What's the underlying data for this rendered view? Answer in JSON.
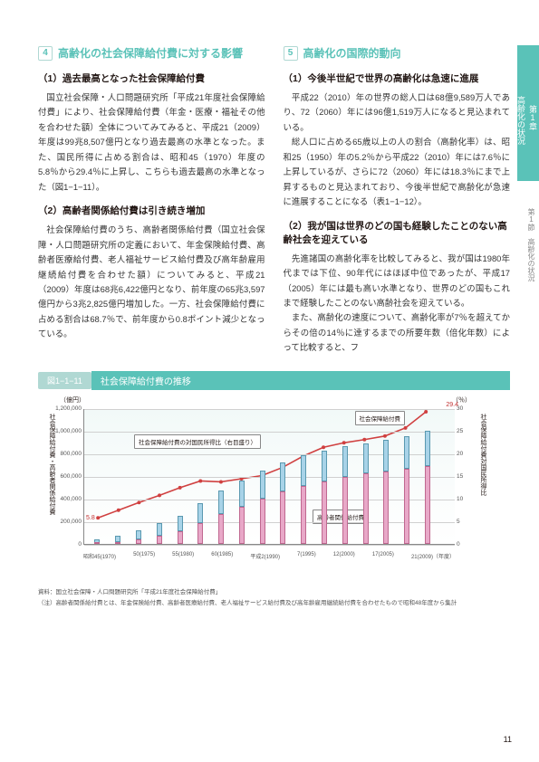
{
  "side_tab": {
    "chapter": "第1章",
    "title": "高齢化の状況"
  },
  "side_sub": "第1節　高齢化の状況",
  "left_section": {
    "num": "4",
    "title": "高齢化の社会保障給付費に対する影響",
    "sub1": "（1）過去最高となった社会保障給付費",
    "p1": "国立社会保障・人口問題研究所「平成21年度社会保障給付費」により、社会保障給付費（年金・医療・福祉その他を合わせた額）全体についてみてみると、平成21（2009）年度は99兆8,507億円となり過去最高の水準となった。また、国民所得に占める割合は、昭和45（1970）年度の5.8％から29.4％に上昇し、こちらも過去最高の水準となった（図1−1−11）。",
    "sub2": "（2）高齢者関係給付費は引き続き増加",
    "p2": "社会保障給付費のうち、高齢者関係給付費（国立社会保障・人口問題研究所の定義において、年金保険給付費、高齢者医療給付費、老人福祉サービス給付費及び高年齢雇用継続給付費を合わせた額）についてみると、平成21（2009）年度は68兆6,422億円となり、前年度の65兆3,597億円から3兆2,825億円増加した。一方、社会保障給付費に占める割合は68.7％で、前年度から0.8ポイント減少となっている。"
  },
  "right_section": {
    "num": "5",
    "title": "高齢化の国際的動向",
    "sub1": "（1）今後半世紀で世界の高齢化は急速に進展",
    "p1": "平成22（2010）年の世界の総人口は68億9,589万人であり、72（2060）年には96億1,519万人になると見込まれている。",
    "p1b": "総人口に占める65歳以上の人の割合（高齢化率）は、昭和25（1950）年の5.2％から平成22（2010）年には7.6％に上昇しているが、さらに72（2060）年には18.3％にまで上昇するものと見込まれており、今後半世紀で高齢化が急速に進展することになる（表1−1−12）。",
    "sub2": "（2）我が国は世界のどの国も経験したことのない高齢社会を迎えている",
    "p2": "先進諸国の高齢化率を比較してみると、我が国は1980年代までは下位、90年代にはほぼ中位であったが、平成17（2005）年には最も高い水準となり、世界のどの国もこれまで経験したことのない高齢社会を迎えている。",
    "p2b": "また、高齢化の速度について、高齢化率が7％を超えてからその倍の14％に達するまでの所要年数（倍化年数）によって比較すると、フ"
  },
  "chart": {
    "tag": "図1−1−11",
    "title": "社会保障給付費の推移",
    "unit_left": "（億円）",
    "unit_right": "（％）",
    "y_left_label": "社会保障給付費・高齢者関係給付費",
    "y_right_label": "社会保障給付費対国民所得比",
    "y_left_ticks": [
      0,
      200000,
      400000,
      600000,
      800000,
      1000000,
      1200000
    ],
    "y_right_ticks": [
      0,
      5,
      10,
      15,
      20,
      25,
      30
    ],
    "x_labels": [
      "昭和45(1970)",
      "50(1975)",
      "55(1980)",
      "60(1985)",
      "平成2(1990)",
      "7(1995)",
      "12(2000)",
      "17(2005)",
      "21(2009)（年度）"
    ],
    "ylim_left": [
      0,
      1200000
    ],
    "ylim_right": [
      0,
      30
    ],
    "colors": {
      "total_bar": "#a8d3e8",
      "total_bar_border": "#5a99b0",
      "elderly_bar": "#e8a8c8",
      "elderly_bar_border": "#c06890",
      "line": "#d04040",
      "grid": "#d0d0d0",
      "background": "#ffffff"
    },
    "legend": {
      "total": "社会保障給付費",
      "ratio": "社会保障給付費の対国民所得比（右目盛り）",
      "elderly": "高齢者関係給付費"
    },
    "line_start_label": "5.8",
    "line_end_label": "29.4",
    "series": {
      "total": [
        35000,
        70000,
        120000,
        180000,
        250000,
        360000,
        470000,
        560000,
        650000,
        720000,
        780000,
        820000,
        860000,
        890000,
        920000,
        950000,
        998507
      ],
      "elderly": [
        8000,
        18000,
        40000,
        70000,
        110000,
        180000,
        260000,
        330000,
        400000,
        460000,
        510000,
        550000,
        590000,
        620000,
        640000,
        660000,
        686422
      ],
      "ratio": [
        5.8,
        7.5,
        9.2,
        10.8,
        12.5,
        14.0,
        13.8,
        14.5,
        15.2,
        17.0,
        19.5,
        21.5,
        22.5,
        23.2,
        24.0,
        25.8,
        29.4
      ]
    },
    "note_source": "資料：国立社会保障・人口問題研究所「平成21年度社会保障給付費」",
    "note_text": "（注）高齢者関係給付費とは、年金保険給付費、高齢者医療給付費、老人福祉サービス給付費及び高年齢雇用継続給付費を合わせたもので昭和48年度から集計"
  },
  "page_number": "11"
}
